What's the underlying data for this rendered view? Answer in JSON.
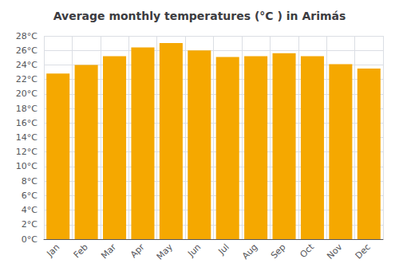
{
  "chart_data": {
    "type": "bar",
    "title": "Average monthly temperatures (°C ) in Arimás",
    "categories": [
      "Jan",
      "Feb",
      "Mar",
      "Apr",
      "May",
      "Jun",
      "Jul",
      "Aug",
      "Sep",
      "Oct",
      "Nov",
      "Dec"
    ],
    "values": [
      22.8,
      24.0,
      25.2,
      26.4,
      27.0,
      26.0,
      25.1,
      25.2,
      25.6,
      25.2,
      24.1,
      23.5
    ],
    "color": "#F5A800",
    "ylim": [
      0,
      28
    ],
    "yticks": [
      {
        "value": 0,
        "label": "0°C"
      },
      {
        "value": 2,
        "label": "2°C"
      },
      {
        "value": 4,
        "label": "4°C"
      },
      {
        "value": 6,
        "label": "6°C"
      },
      {
        "value": 8,
        "label": "8°C"
      },
      {
        "value": 10,
        "label": "10°C"
      },
      {
        "value": 12,
        "label": "12°C"
      },
      {
        "value": 14,
        "label": "14°C"
      },
      {
        "value": 16,
        "label": "16°C"
      },
      {
        "value": 18,
        "label": "18°C"
      },
      {
        "value": 20,
        "label": "20°C"
      },
      {
        "value": 22,
        "label": "22°C"
      },
      {
        "value": 24,
        "label": "24°C"
      },
      {
        "value": 26,
        "label": "26°C"
      },
      {
        "value": 28,
        "label": "28°C"
      }
    ],
    "grid": true
  }
}
